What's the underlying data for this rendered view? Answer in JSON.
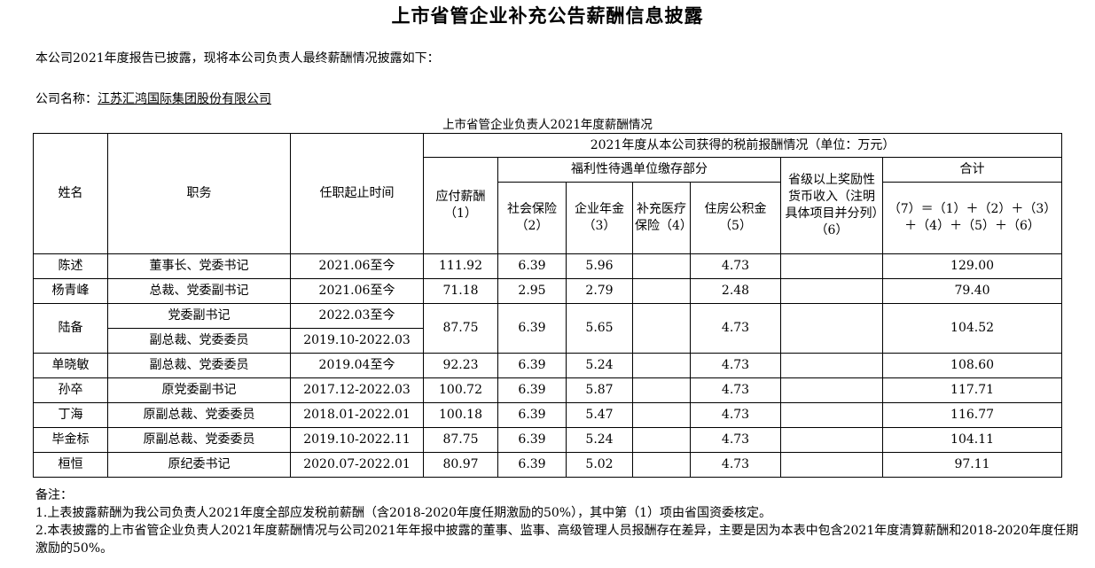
{
  "title": "上市省管企业补充公告薪酬信息披露",
  "intro": "本公司2021年度报告已披露，现将本公司负责人最终薪酬情况披露如下：",
  "company_label": "公司名称：",
  "company_name": "江苏汇鸿国际集团股份有限公司",
  "table_caption": "上市省管企业负责人2021年度薪酬情况",
  "headers": {
    "name": "姓名",
    "position": "职务",
    "term": "任职起止时间",
    "group": "2021年度从本公司获得的税前报酬情况（单位：万元）",
    "salary": "应付薪酬（1）",
    "welfare_group": "福利性待遇单位缴存部分",
    "social": "社会保险（2）",
    "annuity": "企业年金（3）",
    "medical": "补充医疗保险（4）",
    "housing": "住房公积金（5）",
    "award": "省级以上奖励性货币收入（注明具体项目并分列）（6）",
    "total": "合计",
    "formula": "（7）＝（1）＋（2）＋（3）＋（4）＋（5）＋（6）"
  },
  "rows": [
    {
      "name": "陈述",
      "position": "董事长、党委书记",
      "term": "2021.06至今",
      "salary": "111.92",
      "social": "6.39",
      "annuity": "5.96",
      "medical": "",
      "housing": "4.73",
      "award": "",
      "total": "129.00"
    },
    {
      "name": "杨青峰",
      "position": "总裁、党委副书记",
      "term": "2021.06至今",
      "salary": "71.18",
      "social": "2.95",
      "annuity": "2.79",
      "medical": "",
      "housing": "2.48",
      "award": "",
      "total": "79.40"
    },
    {
      "name": "陆备",
      "position": "党委副书记",
      "term": "2022.03至今",
      "position2": "副总裁、党委委员",
      "term2": "2019.10-2022.03",
      "salary": "87.75",
      "social": "6.39",
      "annuity": "5.65",
      "medical": "",
      "housing": "4.73",
      "award": "",
      "total": "104.52"
    },
    {
      "name": "单晓敏",
      "position": "副总裁、党委委员",
      "term": "2019.04至今",
      "salary": "92.23",
      "social": "6.39",
      "annuity": "5.24",
      "medical": "",
      "housing": "4.73",
      "award": "",
      "total": "108.60"
    },
    {
      "name": "孙卒",
      "position": "原党委副书记",
      "term": "2017.12-2022.03",
      "salary": "100.72",
      "social": "6.39",
      "annuity": "5.87",
      "medical": "",
      "housing": "4.73",
      "award": "",
      "total": "117.71"
    },
    {
      "name": "丁海",
      "position": "原副总裁、党委委员",
      "term": "2018.01-2022.01",
      "salary": "100.18",
      "social": "6.39",
      "annuity": "5.47",
      "medical": "",
      "housing": "4.73",
      "award": "",
      "total": "116.77"
    },
    {
      "name": "毕金标",
      "position": "原副总裁、党委委员",
      "term": "2019.10-2022.11",
      "salary": "87.75",
      "social": "6.39",
      "annuity": "5.24",
      "medical": "",
      "housing": "4.73",
      "award": "",
      "total": "104.11"
    },
    {
      "name": "桓恒",
      "position": "原纪委书记",
      "term": "2020.07-2022.01",
      "salary": "80.97",
      "social": "6.39",
      "annuity": "5.02",
      "medical": "",
      "housing": "4.73",
      "award": "",
      "total": "97.11"
    }
  ],
  "notes": {
    "label": "备注：",
    "items": [
      "1.上表披露薪酬为我公司负责人2021年度全部应发税前薪酬（含2018-2020年度任期激励的50%），其中第（1）项由省国资委核定。",
      "2.本表披露的上市省管企业负责人2021年度薪酬情况与公司2021年年报中披露的董事、监事、高级管理人员报酬存在差异，主要是因为本表中包含2021年度清算薪酬和2018-2020年度任期激励的50%。"
    ]
  }
}
